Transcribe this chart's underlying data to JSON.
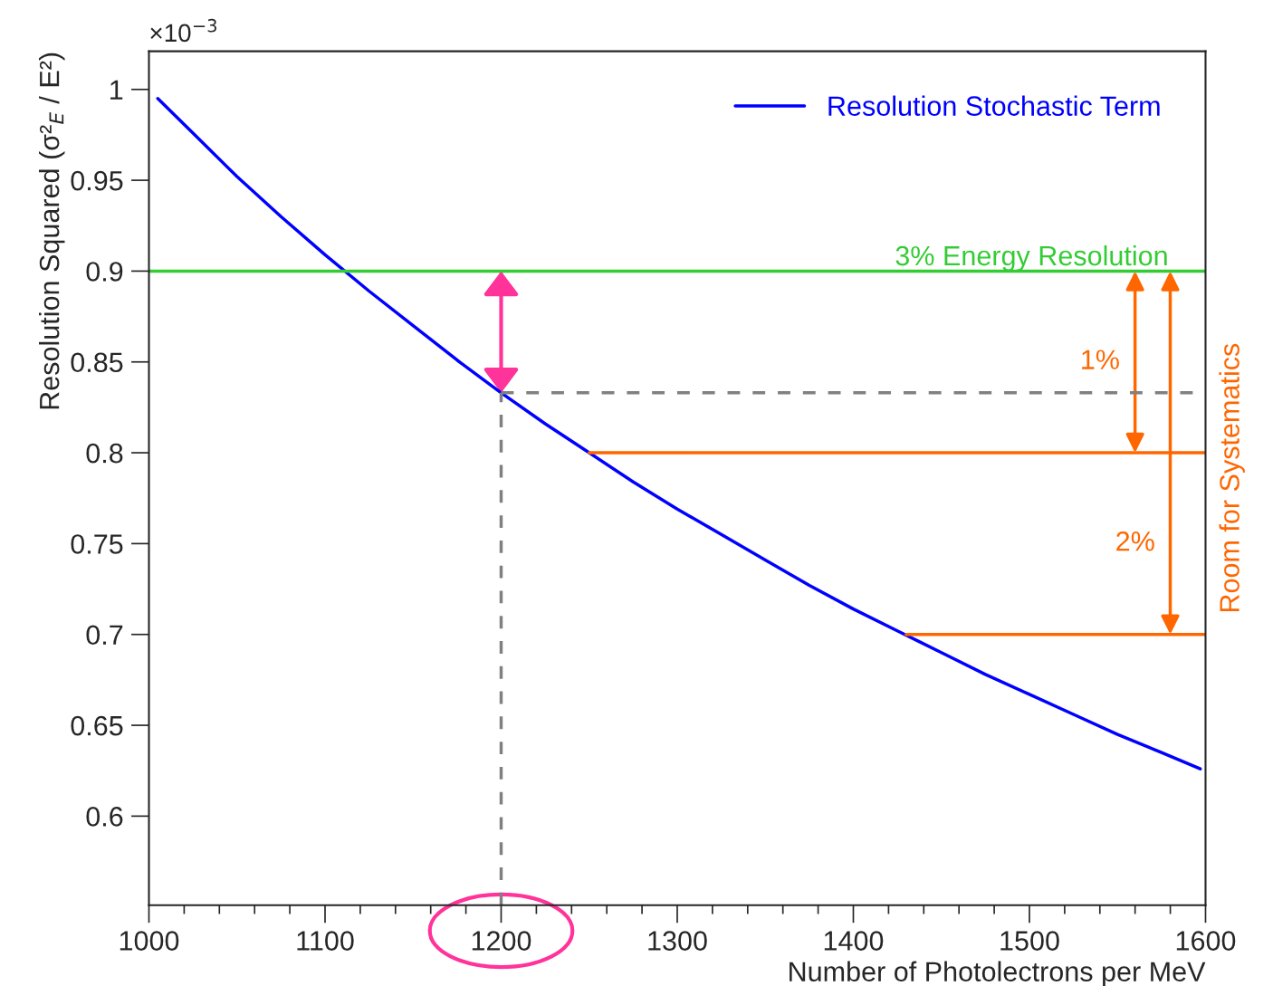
{
  "chart_data": {
    "type": "line",
    "xlabel": "Number of Photolectrons per MeV",
    "ylabel": "Resolution Squared (σ²$_{E}$ / E²)",
    "y2label": "Room for Systematics",
    "xlim": [
      1000,
      1600
    ],
    "xticks": [
      1000,
      {
        "value": 1020,
        "label": null
      },
      {
        "value": 1040,
        "label": null
      },
      {
        "value": 1060,
        "label": null
      },
      {
        "value": 1080,
        "label": null
      },
      1100,
      {
        "value": 1120,
        "label": null
      },
      {
        "value": 1140,
        "label": null
      },
      {
        "value": 1160,
        "label": null
      },
      {
        "value": 1180,
        "label": null
      },
      1200,
      {
        "value": 1220,
        "label": null
      },
      {
        "value": 1240,
        "label": null
      },
      {
        "value": 1260,
        "label": null
      },
      {
        "value": 1280,
        "label": null
      },
      1300,
      {
        "value": 1320,
        "label": null
      },
      {
        "value": 1340,
        "label": null
      },
      {
        "value": 1360,
        "label": null
      },
      {
        "value": 1380,
        "label": null
      },
      1400,
      {
        "value": 1420,
        "label": null
      },
      {
        "value": 1440,
        "label": null
      },
      {
        "value": 1460,
        "label": null
      },
      {
        "value": 1480,
        "label": null
      },
      1500,
      {
        "value": 1520,
        "label": null
      },
      {
        "value": 1540,
        "label": null
      },
      {
        "value": 1560,
        "label": null
      },
      {
        "value": 1580,
        "label": null
      },
      1600
    ],
    "ylim": [
      0.551,
      1.021
    ],
    "yticks": [
      0.6,
      0.65,
      0.7,
      0.75,
      0.8,
      0.85,
      0.9,
      0.95,
      1
    ],
    "legend": "top right",
    "grid": false,
    "ref_lines": [
      {
        "axis": "y",
        "value": 0.9,
        "label": "3% Energy Resolution",
        "color": "#33cc33"
      }
    ],
    "series": [
      {
        "name": "Resolution Stochastic Term",
        "color": "#0000ff",
        "x": [
          1005,
          1025,
          1050,
          1075,
          1100,
          1125,
          1150,
          1175,
          1200,
          1225,
          1250,
          1275,
          1300,
          1325,
          1350,
          1375,
          1400,
          1425,
          1450,
          1475,
          1500,
          1525,
          1550,
          1575,
          1597
        ],
        "values": [
          0.995,
          0.976,
          0.952,
          0.93,
          0.909,
          0.889,
          0.87,
          0.851,
          0.833,
          0.816,
          0.8,
          0.784,
          0.769,
          0.755,
          0.741,
          0.727,
          0.714,
          0.702,
          0.69,
          0.678,
          0.667,
          0.656,
          0.645,
          0.635,
          0.626
        ]
      },
      {
        "color": "#808080",
        "line_style": "dashed",
        "x": [
          1200,
          1600
        ],
        "values": [
          0.833,
          0.833
        ]
      },
      {
        "color": "#808080",
        "line_style": "dashed",
        "x": [
          1200,
          1200
        ],
        "values": [
          0.551,
          0.833
        ]
      },
      {
        "color": "#ff6600",
        "x": [
          1250,
          1600
        ],
        "values": [
          0.8,
          0.8
        ]
      },
      {
        "color": "#ff6600",
        "x": [
          1430,
          1600
        ],
        "values": [
          0.7,
          0.7
        ]
      }
    ],
    "annotations": [
      "×10$^{−3}$",
      "1%",
      "2%"
    ]
  }
}
